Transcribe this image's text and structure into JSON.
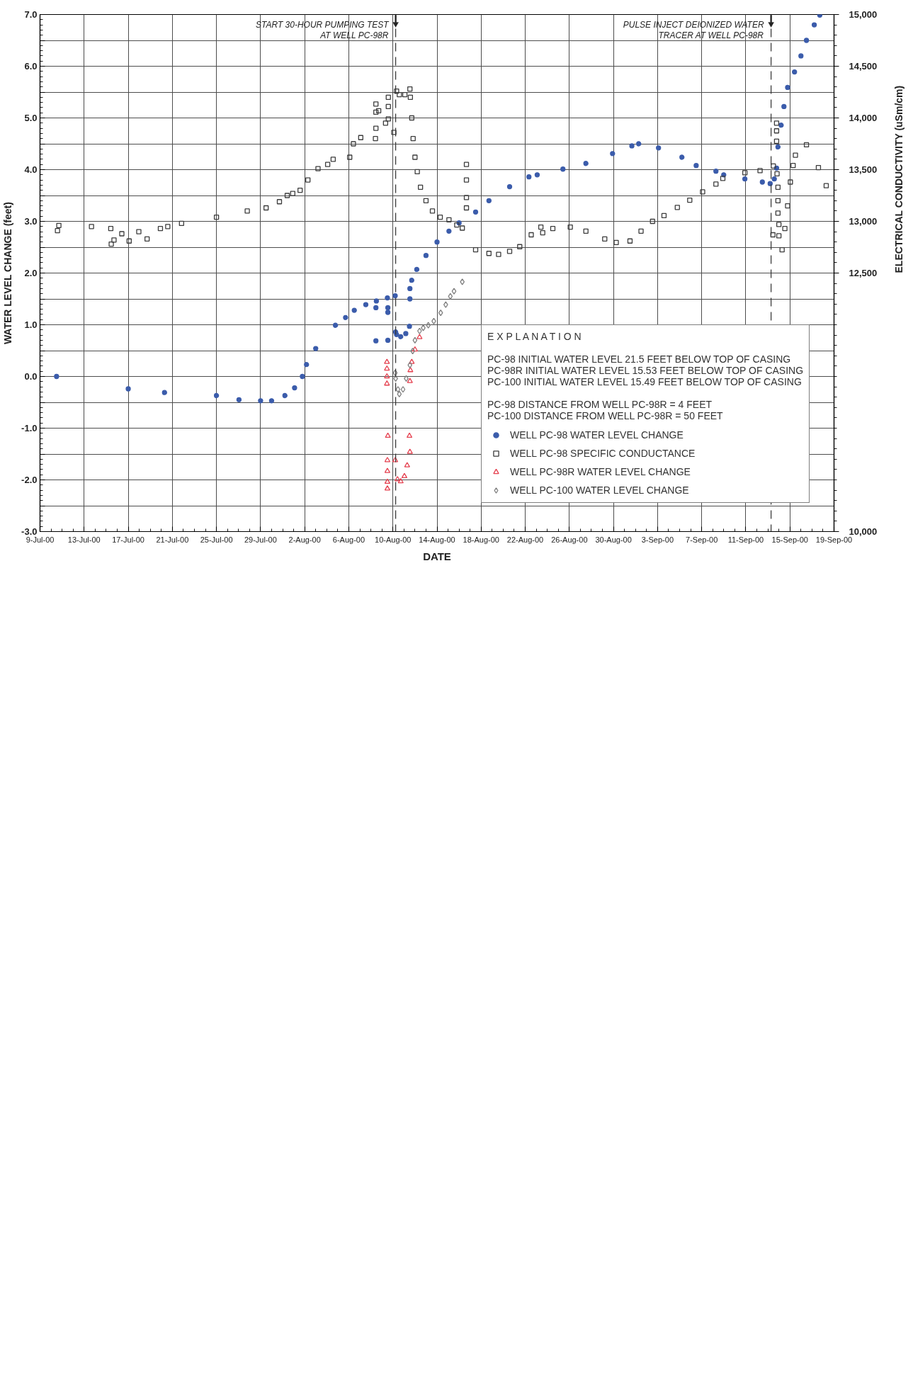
{
  "chart_data": {
    "type": "scatter",
    "xlabel": "DATE",
    "ylabel": "WATER LEVEL CHANGE (feet)",
    "y2label": "ELECTRICAL CONDUCTIVITY (uSm/cm)",
    "legend_title": "E X P L A N A T I O N",
    "annotations": [
      "PC-98 INITIAL WATER LEVEL 21.5 FEET BELOW TOP OF CASING\nPC-98R INITIAL WATER LEVEL 15.53 FEET BELOW TOP OF CASING\nPC-100 INITIAL WATER LEVEL 15.49 FEET BELOW TOP OF CASING",
      "PC-98 DISTANCE FROM WELL PC-98R = 4 FEET\nPC-100 DISTANCE FROM WELL PC-98R = 50 FEET"
    ],
    "xlim": [
      "2000-07-09",
      "2000-09-19"
    ],
    "xticks": [
      {
        "value": "2000-07-09",
        "label": "9-Jul-00"
      },
      {
        "value": "2000-07-13",
        "label": "13-Jul-00"
      },
      {
        "value": "2000-07-17",
        "label": "17-Jul-00"
      },
      {
        "value": "2000-07-21",
        "label": "21-Jul-00"
      },
      {
        "value": "2000-07-25",
        "label": "25-Jul-00"
      },
      {
        "value": "2000-07-29",
        "label": "29-Jul-00"
      },
      {
        "value": "2000-08-02",
        "label": "2-Aug-00"
      },
      {
        "value": "2000-08-06",
        "label": "6-Aug-00"
      },
      {
        "value": "2000-08-10",
        "label": "10-Aug-00"
      },
      {
        "value": "2000-08-14",
        "label": "14-Aug-00"
      },
      {
        "value": "2000-08-18",
        "label": "18-Aug-00"
      },
      {
        "value": "2000-08-22",
        "label": "22-Aug-00"
      },
      {
        "value": "2000-08-26",
        "label": "26-Aug-00"
      },
      {
        "value": "2000-08-30",
        "label": "30-Aug-00"
      },
      {
        "value": "2000-09-03",
        "label": "3-Sep-00"
      },
      {
        "value": "2000-09-07",
        "label": "7-Sep-00"
      },
      {
        "value": "2000-09-11",
        "label": "11-Sep-00"
      },
      {
        "value": "2000-09-15",
        "label": "15-Sep-00"
      },
      {
        "value": "2000-09-19",
        "label": "19-Sep-00"
      }
    ],
    "ylim": [
      -3,
      7
    ],
    "yticks": [
      {
        "value": -3,
        "label": "-3.0"
      },
      {
        "value": -2.5,
        "label": null
      },
      {
        "value": -2,
        "label": "-2.0"
      },
      {
        "value": -1.5,
        "label": null
      },
      {
        "value": -1,
        "label": "-1.0"
      },
      {
        "value": -0.5,
        "label": null
      },
      {
        "value": 0,
        "label": "0.0"
      },
      {
        "value": 0.5,
        "label": null
      },
      {
        "value": 1,
        "label": "1.0"
      },
      {
        "value": 1.5,
        "label": null
      },
      {
        "value": 2,
        "label": "2.0"
      },
      {
        "value": 2.5,
        "label": null
      },
      {
        "value": 3,
        "label": "3.0"
      },
      {
        "value": 3.5,
        "label": null
      },
      {
        "value": 4,
        "label": "4.0"
      },
      {
        "value": 4.5,
        "label": null
      },
      {
        "value": 5,
        "label": "5.0"
      },
      {
        "value": 5.5,
        "label": null
      },
      {
        "value": 6,
        "label": "6.0"
      },
      {
        "value": 6.5,
        "label": null
      },
      {
        "value": 7,
        "label": "7.0"
      }
    ],
    "y2lim": [
      10000,
      15000
    ],
    "y2ticks": [
      {
        "value": 10000,
        "label": "10,000"
      },
      {
        "value": 12500,
        "label": "12,500"
      },
      {
        "value": 13000,
        "label": "13,000"
      },
      {
        "value": 13500,
        "label": "13,500"
      },
      {
        "value": 14000,
        "label": "14,000"
      },
      {
        "value": 14500,
        "label": "14,500"
      },
      {
        "value": 15000,
        "label": "15,000"
      }
    ],
    "grid": true,
    "legend": "bottom right",
    "ref_lines": [
      {
        "axis": "x",
        "value": "2000-08-10T06:00",
        "label": "START 30-HOUR PUMPING TEST\nAT WELL PC-98R",
        "line_style": "dashed"
      },
      {
        "axis": "x",
        "value": "2000-09-13T07:00",
        "label": "PULSE INJECT DEIONIZED WATER\nTRACER AT WELL PC-98R",
        "line_style": "dashed"
      }
    ],
    "series": [
      {
        "name": "WELL PC-98 WATER LEVEL CHANGE",
        "color": "#3b5cab",
        "marker": "circle",
        "x": [
          "2000-07-10T12:00",
          "2000-07-17T00:00",
          "2000-07-20T07:00",
          "2000-07-25T00:00",
          "2000-07-27T01:00",
          "2000-07-29T00:00",
          "2000-07-30T00:00",
          "2000-07-31T05:00",
          "2000-08-01T02:00",
          "2000-08-01T19:00",
          "2000-08-02T04:00",
          "2000-08-03T00:00",
          "2000-08-04T19:00",
          "2000-08-05T17:00",
          "2000-08-06T12:00",
          "2000-08-07T13:00",
          "2000-08-08T12:00",
          "2000-08-09T12:00",
          "2000-08-10T05:00",
          "2000-08-10T06:00",
          "2000-08-10T08:00",
          "2000-08-10T17:00",
          "2000-08-11T04:00",
          "2000-08-11T12:00",
          "2000-08-11T13:00",
          "2000-08-11T13:00",
          "2000-08-11T17:00",
          "2000-08-12T04:00",
          "2000-08-13T00:00",
          "2000-08-14T00:00",
          "2000-08-15T02:00",
          "2000-08-16T00:00",
          "2000-08-17T12:00",
          "2000-08-18T17:00",
          "2000-08-20T14:00",
          "2000-08-22T08:00",
          "2000-08-23T02:00",
          "2000-08-25T10:00",
          "2000-08-27T12:00",
          "2000-08-29T22:00",
          "2000-08-31T16:00",
          "2000-09-01T07:00",
          "2000-09-03T02:00",
          "2000-09-05T05:00",
          "2000-09-06T12:00",
          "2000-09-08T07:00",
          "2000-09-09T00:00",
          "2000-09-10T22:00",
          "2000-09-12T12:00",
          "2000-09-13T05:00",
          "2000-09-13T14:00",
          "2000-09-13T19:00",
          "2000-09-13T22:00",
          "2000-09-14T05:00",
          "2000-09-14T11:00",
          "2000-09-14T19:00",
          "2000-09-15T10:00",
          "2000-09-16T00:00",
          "2000-09-16T12:00",
          "2000-09-17T05:00",
          "2000-09-17T17:00",
          "2000-08-08T11:00",
          "2000-08-08T11:00",
          "2000-08-09T13:00",
          "2000-08-09T13:00",
          "2000-08-09T13:00"
        ],
        "values": [
          0.0,
          -0.24,
          -0.31,
          -0.37,
          -0.45,
          -0.47,
          -0.47,
          -0.37,
          -0.22,
          0.0,
          0.23,
          0.54,
          0.99,
          1.14,
          1.28,
          1.39,
          1.46,
          1.52,
          1.56,
          0.86,
          0.81,
          0.77,
          0.83,
          0.97,
          1.5,
          1.7,
          1.86,
          2.07,
          2.34,
          2.6,
          2.81,
          2.97,
          3.18,
          3.4,
          3.67,
          3.86,
          3.9,
          4.01,
          4.12,
          4.31,
          4.46,
          4.5,
          4.42,
          4.24,
          4.08,
          3.97,
          3.9,
          3.82,
          3.76,
          3.73,
          3.82,
          4.03,
          4.44,
          4.86,
          5.22,
          5.59,
          5.89,
          6.2,
          6.5,
          6.8,
          6.99,
          1.33,
          0.69,
          1.33,
          1.24,
          0.7
        ]
      },
      {
        "name": "WELL PC-98 SPECIFIC CONDUCTANCE",
        "color": "#3d3d3d",
        "marker": "square",
        "axis": "y2",
        "x": [
          "2000-07-10T17:00",
          "2000-07-13T16:00",
          "2000-07-15T10:00",
          "2000-07-15T17:00",
          "2000-07-16T10:00",
          "2000-07-17T02:00",
          "2000-07-17T23:00",
          "2000-07-18T17:00",
          "2000-07-19T22:00",
          "2000-07-20T14:00",
          "2000-07-21T20:00",
          "2000-07-25T00:00",
          "2000-07-27T19:00",
          "2000-07-29T12:00",
          "2000-07-30T17:00",
          "2000-07-31T10:00",
          "2000-07-31T22:00",
          "2000-08-01T14:00",
          "2000-08-02T07:00",
          "2000-08-03T05:00",
          "2000-08-04T02:00",
          "2000-08-04T14:00",
          "2000-08-06T02:00",
          "2000-08-06T10:00",
          "2000-08-07T02:00",
          "2000-08-08T10:00",
          "2000-08-08T17:00",
          "2000-08-09T08:00",
          "2000-08-10T02:00",
          "2000-08-10T08:00",
          "2000-08-10T14:00",
          "2000-08-11T02:00",
          "2000-08-11T13:00",
          "2000-08-11T14:00",
          "2000-08-11T17:00",
          "2000-08-11T20:00",
          "2000-08-12T00:00",
          "2000-08-12T05:00",
          "2000-08-12T12:00",
          "2000-08-13T00:00",
          "2000-08-13T14:00",
          "2000-08-14T07:00",
          "2000-08-15T02:00",
          "2000-08-15T19:00",
          "2000-08-16T07:00",
          "2000-08-17T12:00",
          "2000-08-18T17:00",
          "2000-08-19T14:00",
          "2000-08-20T14:00",
          "2000-08-21T12:00",
          "2000-08-22T13:00",
          "2000-08-23T10:00",
          "2000-08-23T14:00",
          "2000-08-24T12:00",
          "2000-08-26T02:00",
          "2000-08-27T12:00",
          "2000-08-29T05:00",
          "2000-08-30T06:00",
          "2000-08-31T12:00",
          "2000-09-01T12:00",
          "2000-09-02T13:00",
          "2000-09-03T14:00",
          "2000-09-04T19:00",
          "2000-09-05T22:00",
          "2000-09-07T02:00",
          "2000-09-08T07:00",
          "2000-09-08T22:00",
          "2000-09-10T22:00",
          "2000-09-12T07:00",
          "2000-09-13T12:00",
          "2000-09-14T07:00",
          "2000-09-14T13:00",
          "2000-09-14T19:00",
          "2000-09-15T01:00",
          "2000-09-15T07:00",
          "2000-09-15T12:00",
          "2000-09-16T12:00",
          "2000-09-17T14:00",
          "2000-09-18T07:00",
          "2000-07-10T14:00",
          "2000-07-15T11:00",
          "2000-08-08T11:00",
          "2000-08-08T11:00",
          "2000-08-08T11:00",
          "2000-08-09T14:00",
          "2000-08-09T14:00",
          "2000-08-09T14:00",
          "2000-08-16T16:00",
          "2000-08-16T16:00",
          "2000-08-16T16:00",
          "2000-08-16T16:00",
          "2000-09-13T11:00",
          "2000-09-13T19:00",
          "2000-09-13T19:00",
          "2000-09-13T19:00",
          "2000-09-13T20:00",
          "2000-09-13T22:00",
          "2000-09-13T22:00",
          "2000-09-13T22:00",
          "2000-09-14T00:00",
          "2000-09-14T00:00"
        ],
        "values": [
          12960,
          12950,
          12930,
          12820,
          12880,
          12810,
          12900,
          12830,
          12930,
          12950,
          12980,
          13040,
          13100,
          13130,
          13190,
          13250,
          13270,
          13300,
          13400,
          13510,
          13550,
          13600,
          13620,
          13750,
          13810,
          13800,
          14070,
          13950,
          13860,
          14260,
          14225,
          14225,
          14280,
          14200,
          14000,
          13800,
          13620,
          13480,
          13330,
          13200,
          13100,
          13040,
          13015,
          12965,
          12935,
          12725,
          12690,
          12680,
          12710,
          12755,
          12870,
          12945,
          12890,
          12930,
          12945,
          12905,
          12830,
          12795,
          12810,
          12905,
          13000,
          13055,
          13135,
          13205,
          13285,
          13360,
          13415,
          13470,
          13490,
          13535,
          12725,
          12930,
          13150,
          13380,
          13540,
          13640,
          13740,
          13520,
          13345,
          12910,
          12780,
          14135,
          14055,
          13900,
          14200,
          14110,
          13990,
          13550,
          13400,
          13230,
          13130,
          12870,
          13950,
          13875,
          13775,
          13460,
          13330,
          13200,
          13080,
          12970,
          12860
        ]
      },
      {
        "name": "WELL PC-98R WATER LEVEL CHANGE",
        "color": "#e5404f",
        "marker": "triangle",
        "x": [
          "2000-08-10T05:00",
          "2000-08-10T10:00",
          "2000-08-10T17:00",
          "2000-08-11T01:00",
          "2000-08-11T07:00",
          "2000-08-11T13:00",
          "2000-08-11T13:00",
          "2000-08-11T14:00",
          "2000-08-11T17:00",
          "2000-08-12T00:00",
          "2000-08-12T10:00",
          "2000-08-09T11:00",
          "2000-08-09T11:00",
          "2000-08-09T11:00",
          "2000-08-09T11:00",
          "2000-08-09T13:00",
          "2000-08-11T12:00",
          "2000-08-09T12:00",
          "2000-08-09T12:00",
          "2000-08-09T12:00",
          "2000-08-09T12:00"
        ],
        "values": [
          -1.62,
          -1.99,
          -2.03,
          -1.93,
          -1.72,
          -1.46,
          -0.09,
          0.12,
          0.28,
          0.52,
          0.76,
          0.28,
          0.15,
          0.0,
          -0.14,
          -1.15,
          -1.15,
          -1.62,
          -1.83,
          -2.04,
          -2.17
        ]
      },
      {
        "name": "WELL PC-100 WATER LEVEL CHANGE",
        "color": "#7f7f7f",
        "marker": "diamond",
        "x": [
          "2000-08-10T05:00",
          "2000-08-10T06:00",
          "2000-08-10T11:00",
          "2000-08-10T14:00",
          "2000-08-10T22:00",
          "2000-08-11T05:00",
          "2000-08-11T13:00",
          "2000-08-11T19:00",
          "2000-08-12T00:00",
          "2000-08-12T10:00",
          "2000-08-12T18:00",
          "2000-08-13T05:00",
          "2000-08-13T17:00",
          "2000-08-14T08:00",
          "2000-08-14T19:00",
          "2000-08-15T05:00",
          "2000-08-15T13:00",
          "2000-08-16T07:00"
        ],
        "values": [
          0.07,
          -0.04,
          -0.25,
          -0.34,
          -0.25,
          -0.04,
          0.22,
          0.49,
          0.7,
          0.88,
          0.94,
          0.99,
          1.07,
          1.23,
          1.39,
          1.55,
          1.65,
          1.83
        ]
      }
    ]
  }
}
